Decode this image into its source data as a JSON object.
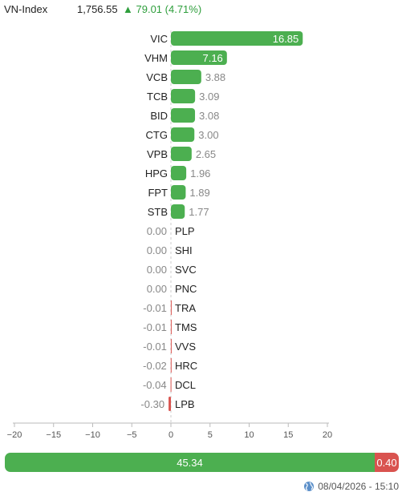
{
  "header": {
    "index_name": "VN-Index",
    "price": "1,756.55",
    "change_arrow": "▲",
    "change": "79.01 (4.71%)"
  },
  "colors": {
    "positive": "#4caf50",
    "negative": "#d9534f",
    "label_text": "#222222",
    "value_text": "#888888"
  },
  "chart_data": {
    "type": "bar",
    "orientation": "horizontal",
    "categories": [
      "VIC",
      "VHM",
      "VCB",
      "TCB",
      "BID",
      "CTG",
      "VPB",
      "HPG",
      "FPT",
      "STB",
      "PLP",
      "SHI",
      "SVC",
      "PNC",
      "TRA",
      "TMS",
      "VVS",
      "HRC",
      "DCL",
      "LPB"
    ],
    "values": [
      16.85,
      7.16,
      3.88,
      3.09,
      3.08,
      3.0,
      2.65,
      1.96,
      1.89,
      1.77,
      0.0,
      0.0,
      0.0,
      0.0,
      -0.01,
      -0.01,
      -0.01,
      -0.02,
      -0.04,
      -0.3
    ],
    "value_labels": [
      "16.85",
      "7.16",
      "3.88",
      "3.09",
      "3.08",
      "3.00",
      "2.65",
      "1.96",
      "1.89",
      "1.77",
      "0.00",
      "0.00",
      "0.00",
      "0.00",
      "-0.01",
      "-0.01",
      "-0.01",
      "-0.02",
      "-0.04",
      "-0.30"
    ],
    "xlim": [
      -20,
      20
    ],
    "xticks": [
      -20,
      -15,
      -10,
      -5,
      0,
      5,
      10,
      15,
      20
    ],
    "xtick_labels": [
      "−20",
      "−15",
      "−10",
      "−5",
      "0",
      "5",
      "10",
      "15",
      "20"
    ],
    "title": "",
    "xlabel": "",
    "ylabel": "",
    "grid": false
  },
  "summary": {
    "positive_total": 45.34,
    "negative_total": 0.4,
    "positive_label": "45.34",
    "negative_label": "0.40"
  },
  "footer": {
    "timestamp": "08/04/2026 - 15:10",
    "icon": "globe-icon"
  }
}
